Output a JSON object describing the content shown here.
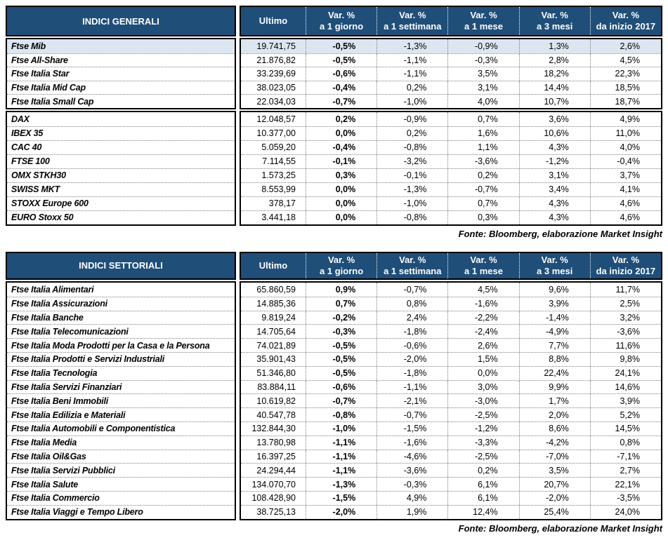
{
  "colors": {
    "header_bg": "#1F4E79",
    "highlight_bg": "#DCE6F1"
  },
  "columns": {
    "ultimo": "Ultimo",
    "var_headers": [
      {
        "line1": "Var. %",
        "line2": "a 1 giorno"
      },
      {
        "line1": "Var. %",
        "line2": "a 1 settimana"
      },
      {
        "line1": "Var. %",
        "line2": "a 1 mese"
      },
      {
        "line1": "Var. %",
        "line2": "a 3 mesi"
      },
      {
        "line1": "Var. %",
        "line2": "da inizio 2017"
      }
    ]
  },
  "tables": [
    {
      "title": "INDICI GENERALI",
      "source": "Fonte: Bloomberg, elaborazione Market Insight",
      "blocks": [
        {
          "rows": [
            {
              "name": "Ftse Mib",
              "ultimo": "19.741,75",
              "vars": [
                "-0,5%",
                "-1,3%",
                "-0,9%",
                "1,3%",
                "2,6%"
              ],
              "highlight": true
            },
            {
              "name": "Ftse All-Share",
              "ultimo": "21.876,82",
              "vars": [
                "-0,5%",
                "-1,1%",
                "-0,3%",
                "2,8%",
                "4,5%"
              ]
            },
            {
              "name": "Ftse Italia Star",
              "ultimo": "33.239,69",
              "vars": [
                "-0,6%",
                "-1,1%",
                "3,5%",
                "18,2%",
                "22,3%"
              ]
            },
            {
              "name": "Ftse Italia Mid Cap",
              "ultimo": "38.023,05",
              "vars": [
                "-0,4%",
                "0,2%",
                "3,1%",
                "14,4%",
                "18,5%"
              ]
            },
            {
              "name": "Ftse Italia Small Cap",
              "ultimo": "22.034,03",
              "vars": [
                "-0,7%",
                "-1,0%",
                "4,0%",
                "10,7%",
                "18,7%"
              ]
            }
          ]
        },
        {
          "rows": [
            {
              "name": "DAX",
              "ultimo": "12.048,57",
              "vars": [
                "0,2%",
                "-0,9%",
                "0,7%",
                "3,6%",
                "4,9%"
              ]
            },
            {
              "name": "IBEX 35",
              "ultimo": "10.377,00",
              "vars": [
                "0,0%",
                "0,2%",
                "1,6%",
                "10,6%",
                "11,0%"
              ]
            },
            {
              "name": "CAC 40",
              "ultimo": "5.059,20",
              "vars": [
                "-0,4%",
                "-0,8%",
                "1,1%",
                "4,3%",
                "4,0%"
              ]
            },
            {
              "name": "FTSE 100",
              "ultimo": "7.114,55",
              "vars": [
                "-0,1%",
                "-3,2%",
                "-3,6%",
                "-1,2%",
                "-0,4%"
              ]
            },
            {
              "name": "OMX STKH30",
              "ultimo": "1.573,25",
              "vars": [
                "0,3%",
                "-0,1%",
                "0,2%",
                "3,1%",
                "3,7%"
              ]
            },
            {
              "name": "SWISS MKT",
              "ultimo": "8.553,99",
              "vars": [
                "0,0%",
                "-1,3%",
                "-0,7%",
                "3,4%",
                "4,1%"
              ]
            },
            {
              "name": "STOXX Europe 600",
              "ultimo": "378,17",
              "vars": [
                "0,0%",
                "-1,0%",
                "0,7%",
                "4,3%",
                "4,6%"
              ]
            },
            {
              "name": "EURO Stoxx 50",
              "ultimo": "3.441,18",
              "vars": [
                "0,0%",
                "-0,8%",
                "0,3%",
                "4,3%",
                "4,6%"
              ]
            }
          ]
        }
      ]
    },
    {
      "title": "INDICI SETTORIALI",
      "source": "Fonte: Bloomberg, elaborazione Market Insight",
      "blocks": [
        {
          "rows": [
            {
              "name": "Ftse Italia Alimentari",
              "ultimo": "65.860,59",
              "vars": [
                "0,9%",
                "-0,7%",
                "4,5%",
                "9,6%",
                "11,7%"
              ]
            },
            {
              "name": "Ftse Italia Assicurazioni",
              "ultimo": "14.885,36",
              "vars": [
                "0,7%",
                "0,8%",
                "-1,6%",
                "3,9%",
                "2,5%"
              ]
            },
            {
              "name": "Ftse Italia Banche",
              "ultimo": "9.819,24",
              "vars": [
                "-0,2%",
                "2,4%",
                "-2,2%",
                "-1,4%",
                "3,2%"
              ]
            },
            {
              "name": "Ftse Italia Telecomunicazioni",
              "ultimo": "14.705,64",
              "vars": [
                "-0,3%",
                "-1,8%",
                "-2,4%",
                "-4,9%",
                "-3,6%"
              ]
            },
            {
              "name": "Ftse Italia Moda Prodotti per la Casa e la Persona",
              "ultimo": "74.021,89",
              "vars": [
                "-0,5%",
                "-0,6%",
                "2,6%",
                "7,7%",
                "11,6%"
              ]
            },
            {
              "name": "Ftse Italia Prodotti e Servizi Industriali",
              "ultimo": "35.901,43",
              "vars": [
                "-0,5%",
                "-2,0%",
                "1,5%",
                "8,8%",
                "9,8%"
              ]
            },
            {
              "name": "Ftse Italia Tecnologia",
              "ultimo": "51.346,80",
              "vars": [
                "-0,5%",
                "-1,8%",
                "0,0%",
                "22,4%",
                "24,1%"
              ]
            },
            {
              "name": "Ftse Italia Servizi Finanziari",
              "ultimo": "83.884,11",
              "vars": [
                "-0,6%",
                "-1,1%",
                "3,0%",
                "9,9%",
                "14,6%"
              ]
            },
            {
              "name": "Ftse Italia Beni Immobili",
              "ultimo": "10.619,82",
              "vars": [
                "-0,7%",
                "-2,1%",
                "-3,0%",
                "1,7%",
                "3,9%"
              ]
            },
            {
              "name": "Ftse Italia Edilizia e Materiali",
              "ultimo": "40.547,78",
              "vars": [
                "-0,8%",
                "-0,7%",
                "-2,5%",
                "2,0%",
                "5,2%"
              ]
            },
            {
              "name": "Ftse Italia Automobili e Componentistica",
              "ultimo": "132.844,30",
              "vars": [
                "-1,0%",
                "-1,5%",
                "-1,2%",
                "8,6%",
                "14,5%"
              ]
            },
            {
              "name": "Ftse Italia Media",
              "ultimo": "13.780,98",
              "vars": [
                "-1,1%",
                "-1,6%",
                "-3,3%",
                "-4,2%",
                "0,8%"
              ]
            },
            {
              "name": "Ftse Italia Oil&Gas",
              "ultimo": "16.397,25",
              "vars": [
                "-1,1%",
                "-4,6%",
                "-2,5%",
                "-7,0%",
                "-7,1%"
              ]
            },
            {
              "name": "Ftse Italia Servizi Pubblici",
              "ultimo": "24.294,44",
              "vars": [
                "-1,1%",
                "-3,6%",
                "0,2%",
                "3,5%",
                "2,7%"
              ]
            },
            {
              "name": "Ftse Italia Salute",
              "ultimo": "134.070,70",
              "vars": [
                "-1,3%",
                "-0,3%",
                "6,1%",
                "20,7%",
                "22,1%"
              ]
            },
            {
              "name": "Ftse Italia Commercio",
              "ultimo": "108.428,90",
              "vars": [
                "-1,5%",
                "4,9%",
                "6,1%",
                "-2,0%",
                "-3,5%"
              ]
            },
            {
              "name": "Ftse Italia Viaggi e Tempo Libero",
              "ultimo": "38.725,13",
              "vars": [
                "-2,0%",
                "1,9%",
                "12,4%",
                "25,4%",
                "24,0%"
              ]
            }
          ]
        }
      ]
    }
  ]
}
